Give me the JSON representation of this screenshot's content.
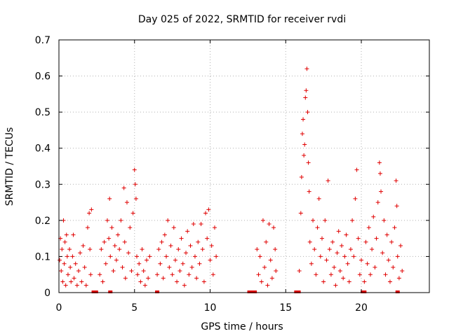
{
  "chart_data": {
    "type": "scatter",
    "title": "Day 025 of 2022, SRMTID for receiver rvdi",
    "xlabel": "GPS time / hours",
    "ylabel": "SRMTID / TECUs",
    "xlim": [
      0,
      24.5
    ],
    "ylim": [
      0,
      0.7
    ],
    "xticks": [
      0,
      5,
      10,
      15,
      20
    ],
    "xtick_labels": [
      "0",
      "5",
      "10",
      "15",
      "20"
    ],
    "yticks": [
      0,
      0.1,
      0.2,
      0.3,
      0.4,
      0.5,
      0.6,
      0.7
    ],
    "ytick_labels": [
      "0",
      "0.1",
      "0.2",
      "0.3",
      "0.4",
      "0.5",
      "0.6",
      "0.7"
    ],
    "grid": true,
    "marker": "plus",
    "color": "#e00000",
    "series": [
      {
        "name": "SRMTID",
        "points": [
          [
            0.05,
            0.09
          ],
          [
            0.1,
            0.15
          ],
          [
            0.15,
            0.06
          ],
          [
            0.2,
            0.12
          ],
          [
            0.25,
            0.03
          ],
          [
            0.3,
            0.2
          ],
          [
            0.35,
            0.08
          ],
          [
            0.4,
            0.14
          ],
          [
            0.45,
            0.02
          ],
          [
            0.5,
            0.16
          ],
          [
            0.55,
            0.1
          ],
          [
            0.6,
            0.05
          ],
          [
            0.7,
            0.12
          ],
          [
            0.75,
            0.07
          ],
          [
            0.8,
            0.03
          ],
          [
            0.9,
            0.1
          ],
          [
            0.95,
            0.16
          ],
          [
            1.0,
            0.04
          ],
          [
            1.1,
            0.08
          ],
          [
            1.2,
            0.02
          ],
          [
            1.3,
            0.06
          ],
          [
            1.4,
            0.11
          ],
          [
            1.5,
            0.03
          ],
          [
            1.6,
            0.13
          ],
          [
            1.7,
            0.07
          ],
          [
            1.8,
            0.02
          ],
          [
            1.9,
            0.18
          ],
          [
            2.0,
            0.22
          ],
          [
            2.05,
            0.12
          ],
          [
            2.1,
            0.05
          ],
          [
            2.15,
            0.23
          ],
          [
            2.7,
            0.05
          ],
          [
            2.8,
            0.12
          ],
          [
            2.9,
            0.03
          ],
          [
            3.0,
            0.14
          ],
          [
            3.1,
            0.08
          ],
          [
            3.2,
            0.2
          ],
          [
            3.3,
            0.15
          ],
          [
            3.35,
            0.26
          ],
          [
            3.4,
            0.1
          ],
          [
            3.5,
            0.18
          ],
          [
            3.6,
            0.06
          ],
          [
            3.7,
            0.13
          ],
          [
            3.8,
            0.09
          ],
          [
            3.9,
            0.16
          ],
          [
            4.0,
            0.12
          ],
          [
            4.1,
            0.2
          ],
          [
            4.2,
            0.07
          ],
          [
            4.3,
            0.29
          ],
          [
            4.35,
            0.14
          ],
          [
            4.4,
            0.04
          ],
          [
            4.5,
            0.25
          ],
          [
            4.6,
            0.11
          ],
          [
            4.7,
            0.18
          ],
          [
            4.8,
            0.06
          ],
          [
            4.9,
            0.22
          ],
          [
            5.0,
            0.34
          ],
          [
            5.05,
            0.3
          ],
          [
            5.1,
            0.26
          ],
          [
            5.15,
            0.1
          ],
          [
            5.2,
            0.05
          ],
          [
            5.3,
            0.08
          ],
          [
            5.4,
            0.03
          ],
          [
            5.5,
            0.12
          ],
          [
            5.6,
            0.06
          ],
          [
            5.7,
            0.02
          ],
          [
            5.8,
            0.09
          ],
          [
            5.9,
            0.04
          ],
          [
            6.0,
            0.1
          ],
          [
            6.5,
            0.05
          ],
          [
            6.6,
            0.12
          ],
          [
            6.7,
            0.08
          ],
          [
            6.8,
            0.14
          ],
          [
            6.9,
            0.04
          ],
          [
            7.0,
            0.16
          ],
          [
            7.1,
            0.1
          ],
          [
            7.2,
            0.2
          ],
          [
            7.3,
            0.07
          ],
          [
            7.4,
            0.13
          ],
          [
            7.5,
            0.05
          ],
          [
            7.6,
            0.18
          ],
          [
            7.7,
            0.09
          ],
          [
            7.8,
            0.03
          ],
          [
            7.9,
            0.12
          ],
          [
            8.0,
            0.06
          ],
          [
            8.1,
            0.15
          ],
          [
            8.2,
            0.08
          ],
          [
            8.3,
            0.02
          ],
          [
            8.4,
            0.11
          ],
          [
            8.5,
            0.17
          ],
          [
            8.6,
            0.05
          ],
          [
            8.7,
            0.13
          ],
          [
            8.8,
            0.07
          ],
          [
            8.9,
            0.19
          ],
          [
            9.0,
            0.1
          ],
          [
            9.1,
            0.04
          ],
          [
            9.2,
            0.14
          ],
          [
            9.3,
            0.08
          ],
          [
            9.4,
            0.19
          ],
          [
            9.5,
            0.12
          ],
          [
            9.6,
            0.03
          ],
          [
            9.7,
            0.22
          ],
          [
            9.8,
            0.15
          ],
          [
            9.9,
            0.23
          ],
          [
            10.0,
            0.09
          ],
          [
            10.1,
            0.13
          ],
          [
            10.2,
            0.05
          ],
          [
            10.3,
            0.18
          ],
          [
            10.4,
            0.1
          ],
          [
            13.1,
            0.12
          ],
          [
            13.2,
            0.05
          ],
          [
            13.3,
            0.1
          ],
          [
            13.4,
            0.03
          ],
          [
            13.5,
            0.2
          ],
          [
            13.6,
            0.07
          ],
          [
            13.7,
            0.14
          ],
          [
            13.8,
            0.02
          ],
          [
            13.9,
            0.19
          ],
          [
            14.0,
            0.09
          ],
          [
            14.1,
            0.04
          ],
          [
            14.2,
            0.18
          ],
          [
            14.3,
            0.12
          ],
          [
            14.35,
            0.06
          ],
          [
            15.9,
            0.06
          ],
          [
            16.0,
            0.22
          ],
          [
            16.05,
            0.32
          ],
          [
            16.1,
            0.44
          ],
          [
            16.15,
            0.48
          ],
          [
            16.2,
            0.38
          ],
          [
            16.25,
            0.41
          ],
          [
            16.3,
            0.54
          ],
          [
            16.35,
            0.56
          ],
          [
            16.4,
            0.62
          ],
          [
            16.45,
            0.5
          ],
          [
            16.5,
            0.36
          ],
          [
            16.55,
            0.28
          ],
          [
            16.6,
            0.14
          ],
          [
            16.7,
            0.08
          ],
          [
            16.8,
            0.2
          ],
          [
            16.9,
            0.12
          ],
          [
            17.0,
            0.05
          ],
          [
            17.1,
            0.18
          ],
          [
            17.2,
            0.26
          ],
          [
            17.3,
            0.1
          ],
          [
            17.4,
            0.15
          ],
          [
            17.5,
            0.03
          ],
          [
            17.6,
            0.2
          ],
          [
            17.7,
            0.09
          ],
          [
            17.8,
            0.31
          ],
          [
            17.9,
            0.12
          ],
          [
            18.0,
            0.05
          ],
          [
            18.1,
            0.14
          ],
          [
            18.2,
            0.07
          ],
          [
            18.3,
            0.02
          ],
          [
            18.4,
            0.11
          ],
          [
            18.5,
            0.17
          ],
          [
            18.6,
            0.06
          ],
          [
            18.7,
            0.13
          ],
          [
            18.8,
            0.04
          ],
          [
            18.9,
            0.1
          ],
          [
            19.0,
            0.16
          ],
          [
            19.1,
            0.08
          ],
          [
            19.2,
            0.03
          ],
          [
            19.3,
            0.12
          ],
          [
            19.4,
            0.2
          ],
          [
            19.5,
            0.1
          ],
          [
            19.6,
            0.26
          ],
          [
            19.7,
            0.34
          ],
          [
            19.8,
            0.15
          ],
          [
            19.9,
            0.05
          ],
          [
            20.0,
            0.09
          ],
          [
            20.2,
            0.03
          ],
          [
            20.3,
            0.14
          ],
          [
            20.4,
            0.08
          ],
          [
            20.5,
            0.18
          ],
          [
            20.6,
            0.05
          ],
          [
            20.7,
            0.12
          ],
          [
            20.8,
            0.21
          ],
          [
            20.9,
            0.07
          ],
          [
            21.0,
            0.15
          ],
          [
            21.1,
            0.25
          ],
          [
            21.2,
            0.36
          ],
          [
            21.25,
            0.33
          ],
          [
            21.3,
            0.28
          ],
          [
            21.4,
            0.11
          ],
          [
            21.5,
            0.2
          ],
          [
            21.6,
            0.05
          ],
          [
            21.7,
            0.16
          ],
          [
            21.8,
            0.09
          ],
          [
            21.9,
            0.03
          ],
          [
            22.0,
            0.14
          ],
          [
            22.1,
            0.07
          ],
          [
            22.2,
            0.18
          ],
          [
            22.3,
            0.31
          ],
          [
            22.35,
            0.24
          ],
          [
            22.4,
            0.1
          ],
          [
            22.5,
            0.04
          ],
          [
            22.6,
            0.13
          ],
          [
            22.7,
            0.06
          ]
        ]
      },
      {
        "name": "zero",
        "points": [
          [
            2.3,
            0.0
          ],
          [
            2.45,
            0.0
          ],
          [
            3.4,
            0.0
          ],
          [
            6.5,
            0.0
          ],
          [
            12.6,
            0.0
          ],
          [
            12.8,
            0.0
          ],
          [
            12.95,
            0.0
          ],
          [
            15.7,
            0.0
          ],
          [
            15.85,
            0.0
          ],
          [
            20.1,
            0.0
          ],
          [
            20.2,
            0.0
          ],
          [
            22.4,
            0.0
          ]
        ]
      }
    ]
  }
}
